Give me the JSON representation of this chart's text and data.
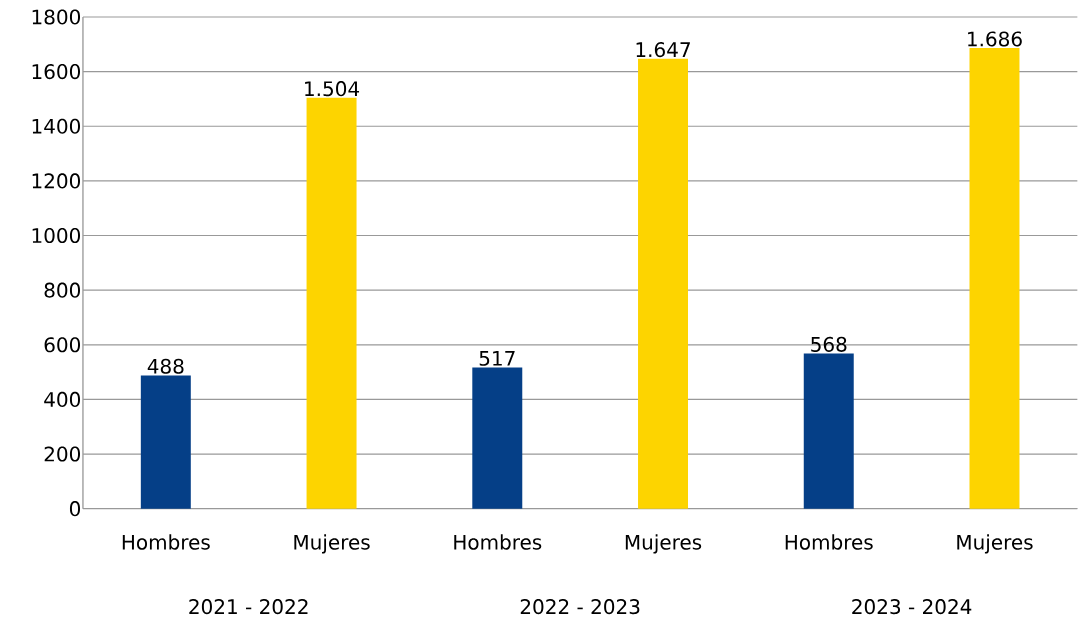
{
  "chart_data": {
    "type": "bar",
    "categories": [
      "Hombres",
      "Mujeres",
      "Hombres",
      "Mujeres",
      "Hombres",
      "Mujeres"
    ],
    "values": [
      488,
      1504,
      517,
      1647,
      568,
      1686
    ],
    "value_labels": [
      "488",
      "1.504",
      "517",
      "1.647",
      "568",
      "1.686"
    ],
    "colors": [
      "#053f87",
      "#fdd400",
      "#053f87",
      "#fdd400",
      "#053f87",
      "#fdd400"
    ],
    "ylim": [
      0,
      1800
    ],
    "yticks": [
      0,
      200,
      400,
      600,
      800,
      1000,
      1200,
      1400,
      1600,
      1800
    ],
    "grid": "y",
    "annotations": [
      "2021 - 2022",
      "2022 - 2023",
      "2023 - 2024"
    ]
  }
}
